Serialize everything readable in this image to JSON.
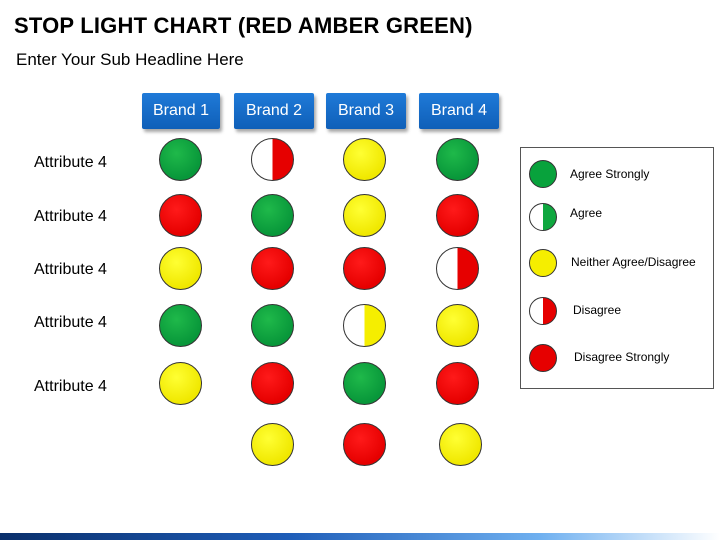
{
  "title": "STOP LIGHT CHART (RED AMBER GREEN)",
  "subtitle": "Enter Your Sub Headline Here",
  "brands": [
    "Brand 1",
    "Brand 2",
    "Brand 3",
    "Brand 4"
  ],
  "rows": [
    {
      "label": "Attribute 4",
      "cells": [
        "green",
        "half-red",
        "yellow",
        "green"
      ]
    },
    {
      "label": "Attribute 4",
      "cells": [
        "red",
        "green",
        "yellow",
        "red"
      ]
    },
    {
      "label": "Attribute 4",
      "cells": [
        "yellow",
        "red",
        "red",
        "half-red"
      ]
    },
    {
      "label": "Attribute 4",
      "cells": [
        "green",
        "green",
        "half-yellow",
        "yellow"
      ]
    },
    {
      "label": "Attribute 4",
      "cells": [
        "yellow",
        "red",
        "green",
        "red"
      ]
    },
    {
      "label": "",
      "cells": [
        "",
        "yellow",
        "red",
        "yellow"
      ]
    }
  ],
  "legend": [
    {
      "label": "Agree Strongly",
      "swatch": "green"
    },
    {
      "label": "Agree",
      "swatch": "half-green"
    },
    {
      "label": "Neither Agree/Disagree",
      "swatch": "yellow"
    },
    {
      "label": "Disagree",
      "swatch": "half-red"
    },
    {
      "label": "Disagree Strongly",
      "swatch": "red"
    }
  ],
  "colors": {
    "brand_button": "#1f7ad8",
    "green": "#08973a",
    "red": "#e60000",
    "yellow": "#f0e800"
  }
}
